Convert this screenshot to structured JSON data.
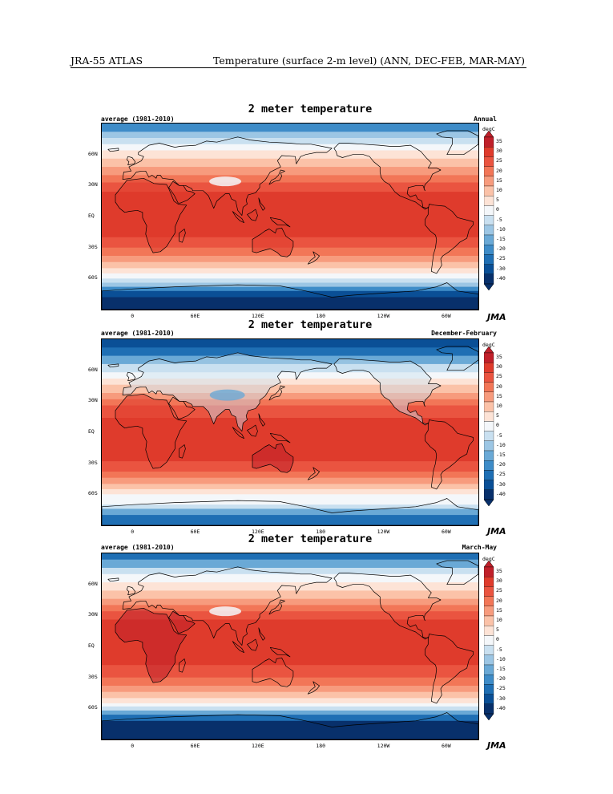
{
  "header": {
    "left": "JRA-55 ATLAS",
    "right": "Temperature (surface 2-m level) (ANN, DEC-FEB, MAR-MAY)"
  },
  "colors": {
    "band_m40": "#08306b",
    "band_m30": "#0a4f96",
    "band_m25": "#1f6fb4",
    "band_m20": "#3e8cc8",
    "band_m15": "#6aa9d6",
    "band_m10": "#9cc6e4",
    "band_m5": "#c9e0f0",
    "band_0": "#f4f7fa",
    "band_5": "#fde3d6",
    "band_10": "#fbc2a8",
    "band_15": "#f79b7d",
    "band_20": "#f27657",
    "band_25": "#ea5440",
    "band_30": "#df3b2c",
    "band_35": "#c0202a",
    "land_outline": "#000000"
  },
  "panels": [
    {
      "title": "2 meter temperature",
      "subtitle": "average (1981-2010)",
      "season": "Annual",
      "lat_labels": [
        "60N",
        "30N",
        "EQ",
        "30S",
        "60S"
      ],
      "lon_labels": [
        "0",
        "60E",
        "120E",
        "180",
        "120W",
        "60W"
      ],
      "colorbar": {
        "unit": "degC",
        "ticks": [
          "35",
          "30",
          "25",
          "20",
          "15",
          "10",
          "5",
          "0",
          "-5",
          "-10",
          "-15",
          "-20",
          "-25",
          "-30",
          "-40"
        ]
      },
      "logo": "JMA"
    },
    {
      "title": "2 meter temperature",
      "subtitle": "average (1981-2010)",
      "season": "December-February",
      "lat_labels": [
        "60N",
        "30N",
        "EQ",
        "30S",
        "60S"
      ],
      "lon_labels": [
        "0",
        "60E",
        "120E",
        "180",
        "120W",
        "60W"
      ],
      "colorbar": {
        "unit": "degC",
        "ticks": [
          "35",
          "30",
          "25",
          "20",
          "15",
          "10",
          "5",
          "0",
          "-5",
          "-10",
          "-15",
          "-20",
          "-25",
          "-30",
          "-40"
        ]
      },
      "logo": "JMA"
    },
    {
      "title": "2 meter temperature",
      "subtitle": "average (1981-2010)",
      "season": "March-May",
      "lat_labels": [
        "60N",
        "30N",
        "EQ",
        "30S",
        "60S"
      ],
      "lon_labels": [
        "0",
        "60E",
        "120E",
        "180",
        "120W",
        "60W"
      ],
      "colorbar": {
        "unit": "degC",
        "ticks": [
          "35",
          "30",
          "25",
          "20",
          "15",
          "10",
          "5",
          "0",
          "-5",
          "-10",
          "-15",
          "-20",
          "-25",
          "-30",
          "-40"
        ]
      },
      "logo": "JMA"
    }
  ]
}
